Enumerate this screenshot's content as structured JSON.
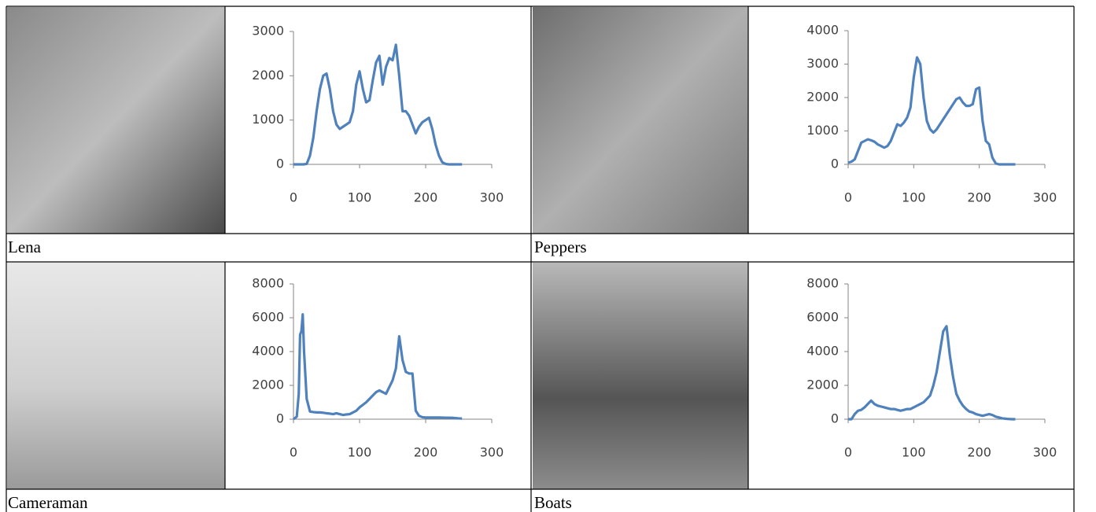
{
  "chart_data": [
    {
      "type": "line",
      "x": [
        0,
        5,
        10,
        15,
        20,
        25,
        30,
        35,
        40,
        45,
        50,
        55,
        60,
        65,
        70,
        75,
        80,
        85,
        90,
        95,
        100,
        105,
        110,
        115,
        120,
        125,
        130,
        135,
        140,
        145,
        150,
        155,
        160,
        165,
        170,
        175,
        180,
        185,
        190,
        195,
        200,
        205,
        210,
        215,
        220,
        225,
        230,
        235,
        240,
        245,
        250,
        255
      ],
      "series": [
        {
          "color": "#4f81bd",
          "values": [
            0,
            0,
            0,
            0,
            10,
            200,
            600,
            1200,
            1700,
            2000,
            2050,
            1700,
            1200,
            900,
            800,
            850,
            900,
            950,
            1200,
            1800,
            2100,
            1700,
            1400,
            1450,
            1900,
            2300,
            2450,
            1800,
            2200,
            2400,
            2350,
            2700,
            2000,
            1200,
            1200,
            1100,
            900,
            700,
            850,
            950,
            1000,
            1050,
            800,
            450,
            200,
            50,
            10,
            0,
            0,
            0,
            0,
            0
          ]
        }
      ],
      "xlim": [
        0,
        300
      ],
      "xticks": [
        0,
        100,
        200,
        300
      ],
      "ylim": [
        0,
        3000
      ],
      "yticks": [
        0,
        1000,
        2000,
        3000
      ]
    },
    {
      "type": "line",
      "x": [
        0,
        5,
        10,
        15,
        20,
        25,
        30,
        35,
        40,
        45,
        50,
        55,
        60,
        65,
        70,
        75,
        80,
        85,
        90,
        95,
        100,
        105,
        110,
        115,
        120,
        125,
        130,
        135,
        140,
        145,
        150,
        155,
        160,
        165,
        170,
        175,
        180,
        185,
        190,
        195,
        200,
        205,
        210,
        215,
        220,
        225,
        230,
        235,
        240,
        245,
        250,
        255
      ],
      "series": [
        {
          "color": "#4f81bd",
          "values": [
            50,
            80,
            150,
            400,
            650,
            700,
            750,
            720,
            680,
            600,
            550,
            500,
            550,
            700,
            950,
            1200,
            1150,
            1250,
            1400,
            1700,
            2600,
            3200,
            3000,
            2000,
            1300,
            1050,
            950,
            1050,
            1200,
            1350,
            1500,
            1650,
            1800,
            1950,
            2000,
            1850,
            1750,
            1750,
            1800,
            2250,
            2300,
            1300,
            700,
            600,
            200,
            30,
            0,
            0,
            0,
            0,
            0,
            0
          ]
        }
      ],
      "xlim": [
        0,
        300
      ],
      "xticks": [
        0,
        100,
        200,
        300
      ],
      "ylim": [
        0,
        4000
      ],
      "yticks": [
        0,
        1000,
        2000,
        3000,
        4000
      ]
    },
    {
      "type": "line",
      "x": [
        0,
        5,
        8,
        10,
        12,
        14,
        16,
        20,
        25,
        30,
        35,
        40,
        45,
        50,
        55,
        60,
        65,
        70,
        75,
        80,
        85,
        90,
        95,
        100,
        105,
        110,
        115,
        120,
        125,
        130,
        135,
        140,
        145,
        150,
        155,
        160,
        165,
        170,
        175,
        180,
        185,
        190,
        195,
        200,
        210,
        220,
        230,
        240,
        250,
        255
      ],
      "series": [
        {
          "color": "#4f81bd",
          "values": [
            0,
            150,
            1500,
            5000,
            5200,
            6200,
            4000,
            1200,
            450,
            420,
            400,
            400,
            380,
            350,
            330,
            300,
            350,
            300,
            250,
            280,
            300,
            400,
            500,
            700,
            850,
            1000,
            1200,
            1400,
            1600,
            1700,
            1600,
            1500,
            1900,
            2300,
            3000,
            4900,
            3500,
            2800,
            2700,
            2700,
            500,
            200,
            120,
            100,
            100,
            100,
            90,
            80,
            50,
            40
          ]
        }
      ],
      "xlim": [
        0,
        300
      ],
      "xticks": [
        0,
        100,
        200,
        300
      ],
      "ylim": [
        0,
        8000
      ],
      "yticks": [
        0,
        2000,
        4000,
        6000,
        8000
      ]
    },
    {
      "type": "line",
      "x": [
        0,
        5,
        10,
        15,
        20,
        25,
        30,
        35,
        40,
        45,
        50,
        55,
        60,
        65,
        70,
        75,
        80,
        85,
        90,
        95,
        100,
        105,
        110,
        115,
        120,
        125,
        130,
        135,
        140,
        145,
        150,
        155,
        160,
        165,
        170,
        175,
        180,
        185,
        190,
        195,
        200,
        205,
        210,
        215,
        220,
        225,
        230,
        235,
        240,
        245,
        250,
        255
      ],
      "series": [
        {
          "color": "#4f81bd",
          "values": [
            0,
            0,
            300,
            500,
            550,
            700,
            900,
            1100,
            900,
            800,
            750,
            700,
            650,
            600,
            600,
            550,
            500,
            550,
            600,
            600,
            700,
            800,
            900,
            1000,
            1200,
            1400,
            2000,
            2800,
            4000,
            5200,
            5500,
            3800,
            2500,
            1500,
            1100,
            800,
            600,
            450,
            400,
            300,
            250,
            200,
            250,
            300,
            250,
            150,
            100,
            50,
            30,
            10,
            0,
            0
          ]
        }
      ],
      "xlim": [
        0,
        300
      ],
      "xticks": [
        0,
        100,
        200,
        300
      ],
      "ylim": [
        0,
        8000
      ],
      "yticks": [
        0,
        2000,
        4000,
        6000,
        8000
      ]
    }
  ],
  "captions": [
    "Lena",
    "Peppers",
    "Cameraman",
    "Boats"
  ]
}
